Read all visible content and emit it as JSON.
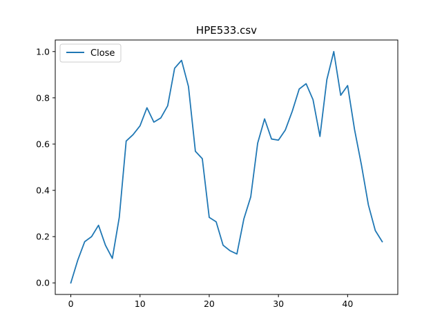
{
  "chart_data": {
    "type": "line",
    "title": "HPE533.csv",
    "xlabel": "",
    "ylabel": "",
    "xlim": [
      -2.25,
      47.25
    ],
    "ylim": [
      -0.05,
      1.05
    ],
    "xticks": [
      0,
      10,
      20,
      30,
      40
    ],
    "xtick_labels": [
      "0",
      "10",
      "20",
      "30",
      "40"
    ],
    "yticks": [
      0.0,
      0.2,
      0.4,
      0.6,
      0.8,
      1.0
    ],
    "ytick_labels": [
      "0.0",
      "0.2",
      "0.4",
      "0.6",
      "0.8",
      "1.0"
    ],
    "grid": false,
    "legend": {
      "position": "upper-left",
      "entries": [
        "Close"
      ]
    },
    "series": [
      {
        "name": "Close",
        "color": "#1f77b4",
        "x": [
          0,
          1,
          2,
          3,
          4,
          5,
          6,
          7,
          8,
          9,
          10,
          11,
          12,
          13,
          14,
          15,
          16,
          17,
          18,
          19,
          20,
          21,
          22,
          23,
          24,
          25,
          26,
          27,
          28,
          29,
          30,
          31,
          32,
          33,
          34,
          35,
          36,
          37,
          38,
          39,
          40,
          41,
          42,
          43,
          44,
          45
        ],
        "y": [
          0.0,
          0.098,
          0.178,
          0.2,
          0.249,
          0.163,
          0.106,
          0.283,
          0.613,
          0.641,
          0.679,
          0.757,
          0.695,
          0.713,
          0.766,
          0.928,
          0.962,
          0.849,
          0.569,
          0.537,
          0.283,
          0.264,
          0.163,
          0.139,
          0.125,
          0.276,
          0.372,
          0.604,
          0.709,
          0.622,
          0.617,
          0.661,
          0.742,
          0.838,
          0.861,
          0.792,
          0.633,
          0.879,
          1.0,
          0.811,
          0.853,
          0.663,
          0.509,
          0.337,
          0.226,
          0.178
        ]
      }
    ]
  }
}
